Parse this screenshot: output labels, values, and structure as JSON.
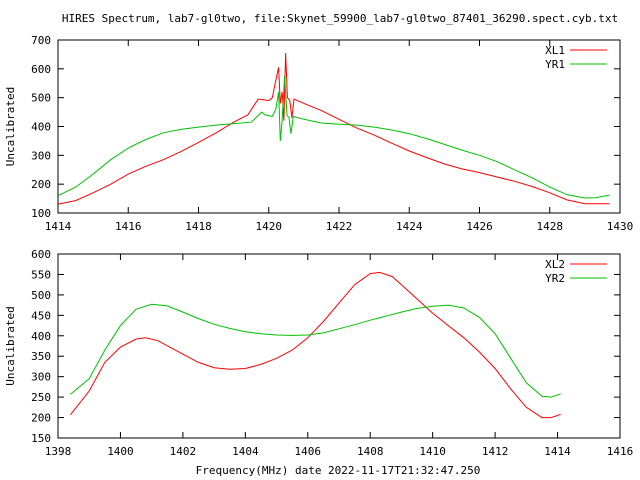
{
  "title": "HIRES Spectrum, lab7-gl0two, file:Skynet_59900_lab7-gl0two_87401_36290.spect.cyb.txt",
  "colors": {
    "x_series": "#ff0000",
    "y_series": "#00c000",
    "axes": "#000000"
  },
  "chart_data": [
    {
      "type": "line",
      "xlabel": "",
      "ylabel": "Uncalibrated",
      "xlim": [
        1414,
        1430
      ],
      "ylim": [
        100,
        700
      ],
      "xticks": [
        1414,
        1416,
        1418,
        1420,
        1422,
        1424,
        1426,
        1428,
        1430
      ],
      "yticks": [
        100,
        200,
        300,
        400,
        500,
        600,
        700
      ],
      "legend": "top-right",
      "grid": false,
      "series": [
        {
          "name": "XL1",
          "color": "#ff0000",
          "points": [
            [
              1414,
              131
            ],
            [
              1414.5,
              143
            ],
            [
              1415,
              170
            ],
            [
              1415.5,
              200
            ],
            [
              1416,
              235
            ],
            [
              1416.5,
              262
            ],
            [
              1417,
              285
            ],
            [
              1417.5,
              313
            ],
            [
              1418,
              345
            ],
            [
              1418.5,
              378
            ],
            [
              1419,
              415
            ],
            [
              1419.4,
              440
            ],
            [
              1419.7,
              495
            ],
            [
              1420,
              490
            ],
            [
              1420.1,
              500
            ],
            [
              1420.2,
              560
            ],
            [
              1420.28,
              605
            ],
            [
              1420.33,
              480
            ],
            [
              1420.38,
              520
            ],
            [
              1420.43,
              420
            ],
            [
              1420.48,
              655
            ],
            [
              1420.53,
              500
            ],
            [
              1420.6,
              490
            ],
            [
              1420.66,
              430
            ],
            [
              1420.72,
              495
            ],
            [
              1421,
              480
            ],
            [
              1421.5,
              455
            ],
            [
              1422,
              425
            ],
            [
              1422.5,
              395
            ],
            [
              1423,
              370
            ],
            [
              1423.5,
              342
            ],
            [
              1424,
              315
            ],
            [
              1424.5,
              292
            ],
            [
              1425,
              270
            ],
            [
              1425.5,
              253
            ],
            [
              1426,
              240
            ],
            [
              1426.5,
              225
            ],
            [
              1427,
              210
            ],
            [
              1427.5,
              192
            ],
            [
              1428,
              170
            ],
            [
              1428.5,
              145
            ],
            [
              1429,
              132
            ],
            [
              1429.7,
              132
            ]
          ]
        },
        {
          "name": "YR1",
          "color": "#00c000",
          "points": [
            [
              1414,
              160
            ],
            [
              1414.5,
              190
            ],
            [
              1415,
              235
            ],
            [
              1415.5,
              285
            ],
            [
              1416,
              325
            ],
            [
              1416.5,
              355
            ],
            [
              1417,
              378
            ],
            [
              1417.5,
              390
            ],
            [
              1418,
              398
            ],
            [
              1418.5,
              405
            ],
            [
              1419,
              410
            ],
            [
              1419.5,
              415
            ],
            [
              1419.8,
              450
            ],
            [
              1419.9,
              440
            ],
            [
              1420.1,
              435
            ],
            [
              1420.2,
              460
            ],
            [
              1420.28,
              520
            ],
            [
              1420.33,
              350
            ],
            [
              1420.38,
              420
            ],
            [
              1420.45,
              575
            ],
            [
              1420.52,
              440
            ],
            [
              1420.58,
              430
            ],
            [
              1420.63,
              375
            ],
            [
              1420.7,
              435
            ],
            [
              1421,
              425
            ],
            [
              1421.5,
              412
            ],
            [
              1422,
              408
            ],
            [
              1422.5,
              405
            ],
            [
              1423,
              398
            ],
            [
              1423.5,
              388
            ],
            [
              1424,
              375
            ],
            [
              1424.5,
              358
            ],
            [
              1425,
              338
            ],
            [
              1425.5,
              318
            ],
            [
              1426,
              300
            ],
            [
              1426.5,
              278
            ],
            [
              1427,
              250
            ],
            [
              1427.5,
              222
            ],
            [
              1428,
              190
            ],
            [
              1428.5,
              163
            ],
            [
              1429,
              152
            ],
            [
              1429.3,
              153
            ],
            [
              1429.7,
              162
            ]
          ]
        }
      ]
    },
    {
      "type": "line",
      "xlabel": "Frequency(MHz) date 2022-11-17T21:32:47.250",
      "ylabel": "Uncalibrated",
      "xlim": [
        1398,
        1416
      ],
      "ylim": [
        150,
        600
      ],
      "xticks": [
        1398,
        1400,
        1402,
        1404,
        1406,
        1408,
        1410,
        1412,
        1414,
        1416
      ],
      "yticks": [
        150,
        200,
        250,
        300,
        350,
        400,
        450,
        500,
        550,
        600
      ],
      "legend": "top-right",
      "grid": false,
      "series": [
        {
          "name": "XL2",
          "color": "#ff0000",
          "points": [
            [
              1398.4,
              207
            ],
            [
              1399,
              265
            ],
            [
              1399.5,
              335
            ],
            [
              1400,
              372
            ],
            [
              1400.5,
              392
            ],
            [
              1400.8,
              395
            ],
            [
              1401.2,
              388
            ],
            [
              1402,
              355
            ],
            [
              1402.5,
              335
            ],
            [
              1403,
              322
            ],
            [
              1403.5,
              318
            ],
            [
              1404,
              320
            ],
            [
              1404.5,
              330
            ],
            [
              1405,
              345
            ],
            [
              1405.5,
              365
            ],
            [
              1406,
              395
            ],
            [
              1406.5,
              435
            ],
            [
              1407,
              480
            ],
            [
              1407.5,
              525
            ],
            [
              1408,
              552
            ],
            [
              1408.3,
              555
            ],
            [
              1408.7,
              545
            ],
            [
              1409,
              525
            ],
            [
              1409.5,
              490
            ],
            [
              1410,
              455
            ],
            [
              1410.5,
              425
            ],
            [
              1411,
              395
            ],
            [
              1411.5,
              360
            ],
            [
              1412,
              320
            ],
            [
              1412.5,
              270
            ],
            [
              1413,
              225
            ],
            [
              1413.5,
              200
            ],
            [
              1413.8,
              200
            ],
            [
              1414.1,
              208
            ]
          ]
        },
        {
          "name": "YR2",
          "color": "#00c000",
          "points": [
            [
              1398.4,
              257
            ],
            [
              1399,
              295
            ],
            [
              1399.5,
              365
            ],
            [
              1400,
              425
            ],
            [
              1400.5,
              465
            ],
            [
              1401,
              477
            ],
            [
              1401.5,
              473
            ],
            [
              1402,
              458
            ],
            [
              1402.5,
              442
            ],
            [
              1403,
              428
            ],
            [
              1403.5,
              418
            ],
            [
              1404,
              410
            ],
            [
              1404.5,
              405
            ],
            [
              1405,
              402
            ],
            [
              1405.5,
              401
            ],
            [
              1406,
              402
            ],
            [
              1406.5,
              407
            ],
            [
              1407,
              417
            ],
            [
              1407.5,
              427
            ],
            [
              1408,
              438
            ],
            [
              1408.5,
              448
            ],
            [
              1409,
              458
            ],
            [
              1409.5,
              467
            ],
            [
              1410,
              472
            ],
            [
              1410.5,
              475
            ],
            [
              1411,
              468
            ],
            [
              1411.5,
              445
            ],
            [
              1412,
              405
            ],
            [
              1412.5,
              345
            ],
            [
              1413,
              285
            ],
            [
              1413.5,
              252
            ],
            [
              1413.8,
              250
            ],
            [
              1414.1,
              258
            ]
          ]
        }
      ]
    }
  ]
}
